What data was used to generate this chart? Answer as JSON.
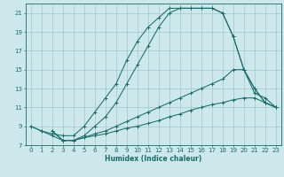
{
  "xlabel": "Humidex (Indice chaleur)",
  "bg_color": "#cde8ea",
  "grid_color": "#a0c8cc",
  "line_color": "#1a6b6b",
  "xlim": [
    -0.5,
    23.5
  ],
  "ylim": [
    7,
    22
  ],
  "xticks": [
    0,
    1,
    2,
    3,
    4,
    5,
    6,
    7,
    8,
    9,
    10,
    11,
    12,
    13,
    14,
    15,
    16,
    17,
    18,
    19,
    20,
    21,
    22,
    23
  ],
  "yticks": [
    7,
    9,
    11,
    13,
    15,
    17,
    19,
    21
  ],
  "lines": [
    {
      "x": [
        0,
        1,
        2,
        3,
        4,
        5,
        6,
        7,
        8,
        9,
        10,
        11,
        12,
        13,
        14,
        15,
        16,
        17,
        18,
        19,
        20,
        21,
        22,
        23
      ],
      "y": [
        9.0,
        8.5,
        8.2,
        8.0,
        8.0,
        9.0,
        10.5,
        12.0,
        13.5,
        16.0,
        18.0,
        19.5,
        20.5,
        21.5,
        21.5,
        21.5,
        21.5,
        21.5,
        21.0,
        18.5,
        15.0,
        13.0,
        11.5,
        11.0
      ]
    },
    {
      "x": [
        0,
        1,
        2,
        3,
        4,
        5,
        6,
        7,
        8,
        9,
        10,
        11,
        12,
        13,
        14,
        15,
        16,
        17,
        18,
        19,
        20,
        21,
        22,
        23
      ],
      "y": [
        9.0,
        8.5,
        8.0,
        7.5,
        7.5,
        8.0,
        9.0,
        10.0,
        11.5,
        13.5,
        15.5,
        17.5,
        19.5,
        21.0,
        21.5,
        21.5,
        21.5,
        21.5,
        21.0,
        18.5,
        15.0,
        13.0,
        11.5,
        11.0
      ]
    },
    {
      "x": [
        2,
        3,
        4,
        5,
        6,
        7,
        8,
        9,
        10,
        11,
        12,
        13,
        14,
        15,
        16,
        17,
        18,
        19,
        20,
        21,
        22,
        23
      ],
      "y": [
        8.5,
        7.5,
        7.5,
        7.8,
        8.2,
        8.5,
        9.0,
        9.5,
        10.0,
        10.5,
        11.0,
        11.5,
        12.0,
        12.5,
        13.0,
        13.5,
        14.0,
        15.0,
        15.0,
        12.5,
        12.0,
        11.0
      ]
    },
    {
      "x": [
        2,
        3,
        4,
        5,
        6,
        7,
        8,
        9,
        10,
        11,
        12,
        13,
        14,
        15,
        16,
        17,
        18,
        19,
        20,
        21,
        22,
        23
      ],
      "y": [
        8.5,
        7.5,
        7.5,
        7.8,
        8.0,
        8.2,
        8.5,
        8.8,
        9.0,
        9.3,
        9.6,
        10.0,
        10.3,
        10.7,
        11.0,
        11.3,
        11.5,
        11.8,
        12.0,
        12.0,
        11.5,
        11.0
      ]
    }
  ]
}
